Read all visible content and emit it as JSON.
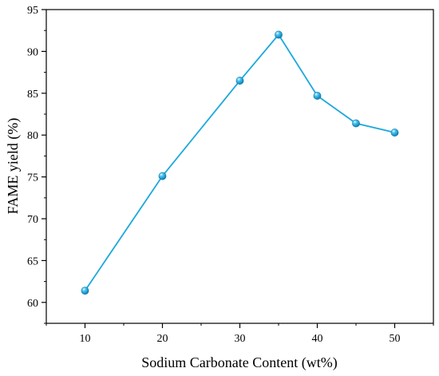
{
  "chart_data": {
    "type": "line",
    "xlabel": "Sodium Carbonate Content (wt%)",
    "ylabel": "FAME yield (%)",
    "xlim": [
      5,
      55
    ],
    "ylim": [
      57.5,
      95
    ],
    "xticks": [
      10,
      20,
      30,
      40,
      50
    ],
    "yticks": [
      60,
      65,
      70,
      75,
      80,
      85,
      90,
      95
    ],
    "xtick_labels": [
      "10",
      "20",
      "30",
      "40",
      "50"
    ],
    "ytick_labels": [
      "60",
      "65",
      "70",
      "75",
      "80",
      "85",
      "90",
      "95"
    ],
    "series": [
      {
        "x": [
          10,
          20,
          30,
          35,
          40,
          45,
          50
        ],
        "y": [
          61.4,
          75.1,
          86.5,
          92.0,
          84.7,
          81.4,
          80.3
        ]
      }
    ],
    "colors": {
      "line": "#1ca8dd",
      "marker": "#1ca8dd",
      "axis": "#000000"
    },
    "marker": "sphere",
    "grid": false,
    "legend": "none"
  }
}
